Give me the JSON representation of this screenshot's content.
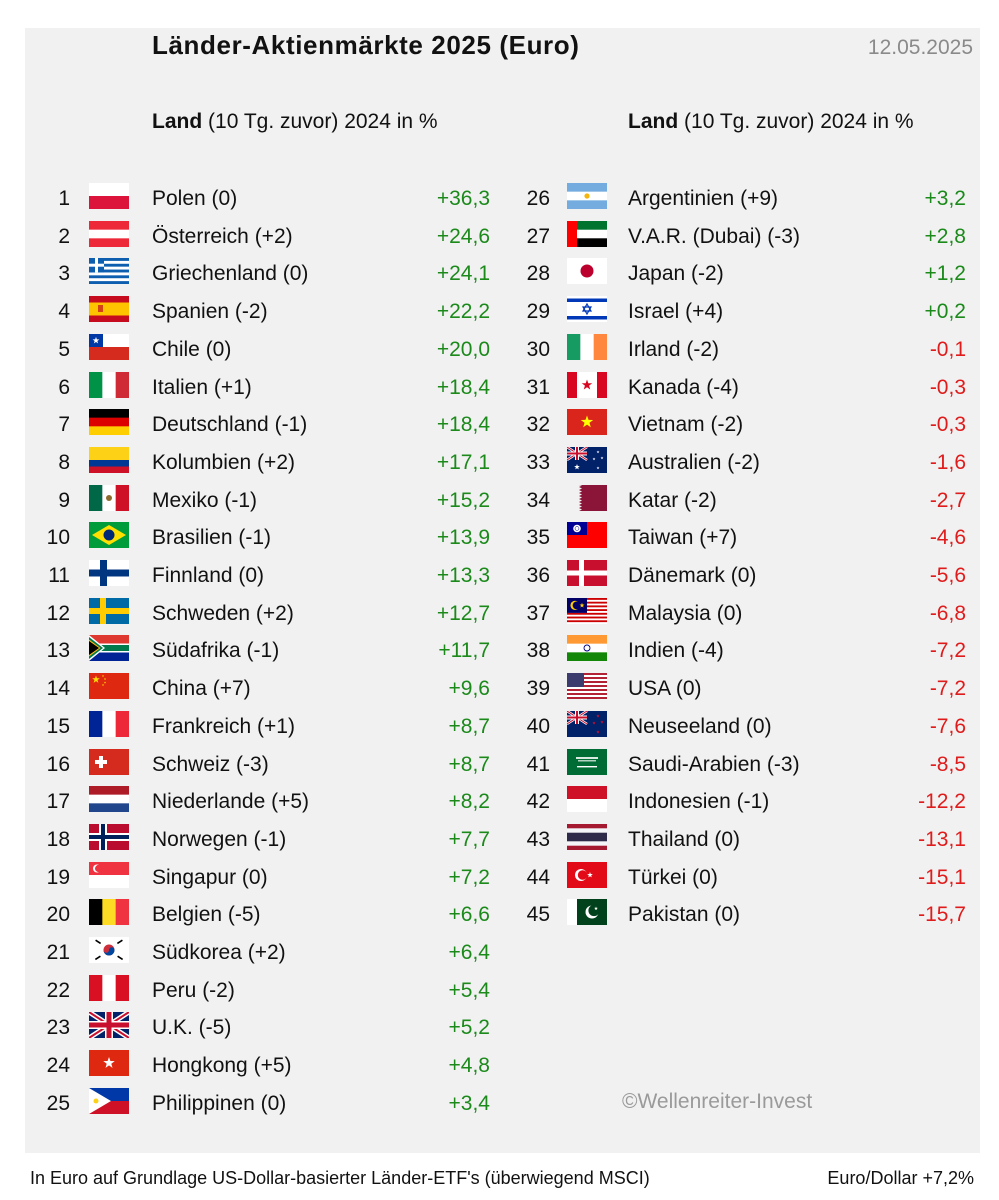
{
  "title": "Länder-Aktienmärkte 2025 (Euro)",
  "date": "12.05.2025",
  "header": {
    "land": "Land",
    "zuvor": "(10 Tg. zuvor)",
    "year": "2024 in %"
  },
  "rows": [
    {
      "rank": "1",
      "name": "Polen (0)",
      "value": "+36,3",
      "flag": "poland-flag"
    },
    {
      "rank": "2",
      "name": "Österreich (+2)",
      "value": "+24,6",
      "flag": "austria-flag"
    },
    {
      "rank": "3",
      "name": "Griechenland (0)",
      "value": "+24,1",
      "flag": "greece-flag"
    },
    {
      "rank": "4",
      "name": "Spanien (-2)",
      "value": "+22,2",
      "flag": "spain-flag"
    },
    {
      "rank": "5",
      "name": "Chile (0)",
      "value": "+20,0",
      "flag": "chile-flag"
    },
    {
      "rank": "6",
      "name": "Italien (+1)",
      "value": "+18,4",
      "flag": "italy-flag"
    },
    {
      "rank": "7",
      "name": "Deutschland (-1)",
      "value": "+18,4",
      "flag": "germany-flag"
    },
    {
      "rank": "8",
      "name": "Kolumbien (+2)",
      "value": "+17,1",
      "flag": "colombia-flag"
    },
    {
      "rank": "9",
      "name": "Mexiko (-1)",
      "value": "+15,2",
      "flag": "mexico-flag"
    },
    {
      "rank": "10",
      "name": "Brasilien (-1)",
      "value": "+13,9",
      "flag": "brazil-flag"
    },
    {
      "rank": "11",
      "name": "Finnland (0)",
      "value": "+13,3",
      "flag": "finland-flag"
    },
    {
      "rank": "12",
      "name": "Schweden (+2)",
      "value": "+12,7",
      "flag": "sweden-flag"
    },
    {
      "rank": "13",
      "name": "Südafrika (-1)",
      "value": "+11,7",
      "flag": "south-africa-flag"
    },
    {
      "rank": "14",
      "name": "China (+7)",
      "value": "+9,6",
      "flag": "china-flag"
    },
    {
      "rank": "15",
      "name": "Frankreich (+1)",
      "value": "+8,7",
      "flag": "france-flag"
    },
    {
      "rank": "16",
      "name": "Schweiz (-3)",
      "value": "+8,7",
      "flag": "switzerland-flag"
    },
    {
      "rank": "17",
      "name": "Niederlande (+5)",
      "value": "+8,2",
      "flag": "netherlands-flag"
    },
    {
      "rank": "18",
      "name": "Norwegen (-1)",
      "value": "+7,7",
      "flag": "norway-flag"
    },
    {
      "rank": "19",
      "name": "Singapur (0)",
      "value": "+7,2",
      "flag": "singapore-flag"
    },
    {
      "rank": "20",
      "name": "Belgien (-5)",
      "value": "+6,6",
      "flag": "belgium-flag"
    },
    {
      "rank": "21",
      "name": "Südkorea (+2)",
      "value": "+6,4",
      "flag": "south-korea-flag"
    },
    {
      "rank": "22",
      "name": "Peru (-2)",
      "value": "+5,4",
      "flag": "peru-flag"
    },
    {
      "rank": "23",
      "name": "U.K. (-5)",
      "value": "+5,2",
      "flag": "uk-flag"
    },
    {
      "rank": "24",
      "name": "Hongkong (+5)",
      "value": "+4,8",
      "flag": "hongkong-flag"
    },
    {
      "rank": "25",
      "name": "Philippinen (0)",
      "value": "+3,4",
      "flag": "philippines-flag"
    },
    {
      "rank": "26",
      "name": "Argentinien (+9)",
      "value": "+3,2",
      "flag": "argentina-flag"
    },
    {
      "rank": "27",
      "name": "V.A.R. (Dubai) (-3)",
      "value": "+2,8",
      "flag": "uae-flag"
    },
    {
      "rank": "28",
      "name": "Japan (-2)",
      "value": "+1,2",
      "flag": "japan-flag"
    },
    {
      "rank": "29",
      "name": "Israel (+4)",
      "value": "+0,2",
      "flag": "israel-flag"
    },
    {
      "rank": "30",
      "name": "Irland (-2)",
      "value": "-0,1",
      "flag": "ireland-flag"
    },
    {
      "rank": "31",
      "name": "Kanada (-4)",
      "value": "-0,3",
      "flag": "canada-flag"
    },
    {
      "rank": "32",
      "name": "Vietnam (-2)",
      "value": "-0,3",
      "flag": "vietnam-flag"
    },
    {
      "rank": "33",
      "name": "Australien (-2)",
      "value": "-1,6",
      "flag": "australia-flag"
    },
    {
      "rank": "34",
      "name": "Katar (-2)",
      "value": "-2,7",
      "flag": "qatar-flag"
    },
    {
      "rank": "35",
      "name": "Taiwan (+7)",
      "value": "-4,6",
      "flag": "taiwan-flag"
    },
    {
      "rank": "36",
      "name": "Dänemark (0)",
      "value": "-5,6",
      "flag": "denmark-flag"
    },
    {
      "rank": "37",
      "name": "Malaysia (0)",
      "value": "-6,8",
      "flag": "malaysia-flag"
    },
    {
      "rank": "38",
      "name": "Indien (-4)",
      "value": "-7,2",
      "flag": "india-flag"
    },
    {
      "rank": "39",
      "name": "USA (0)",
      "value": "-7,2",
      "flag": "usa-flag"
    },
    {
      "rank": "40",
      "name": "Neuseeland (0)",
      "value": "-7,6",
      "flag": "new-zealand-flag"
    },
    {
      "rank": "41",
      "name": "Saudi-Arabien (-3)",
      "value": "-8,5",
      "flag": "saudi-arabia-flag"
    },
    {
      "rank": "42",
      "name": "Indonesien (-1)",
      "value": "-12,2",
      "flag": "indonesia-flag"
    },
    {
      "rank": "43",
      "name": "Thailand (0)",
      "value": "-13,1",
      "flag": "thailand-flag"
    },
    {
      "rank": "44",
      "name": "Türkei (0)",
      "value": "-15,1",
      "flag": "turkey-flag"
    },
    {
      "rank": "45",
      "name": "Pakistan (0)",
      "value": "-15,7",
      "flag": "pakistan-flag"
    }
  ],
  "colors": {
    "positive": "#1b8a1b",
    "negative": "#e01b1b",
    "panel": "#f1f1f1"
  },
  "credit": "©Wellenreiter-Invest",
  "footer_left": "In Euro auf Grundlage US-Dollar-basierter Länder-ETF's (überwiegend MSCI)",
  "footer_right": "Euro/Dollar +7,2%"
}
